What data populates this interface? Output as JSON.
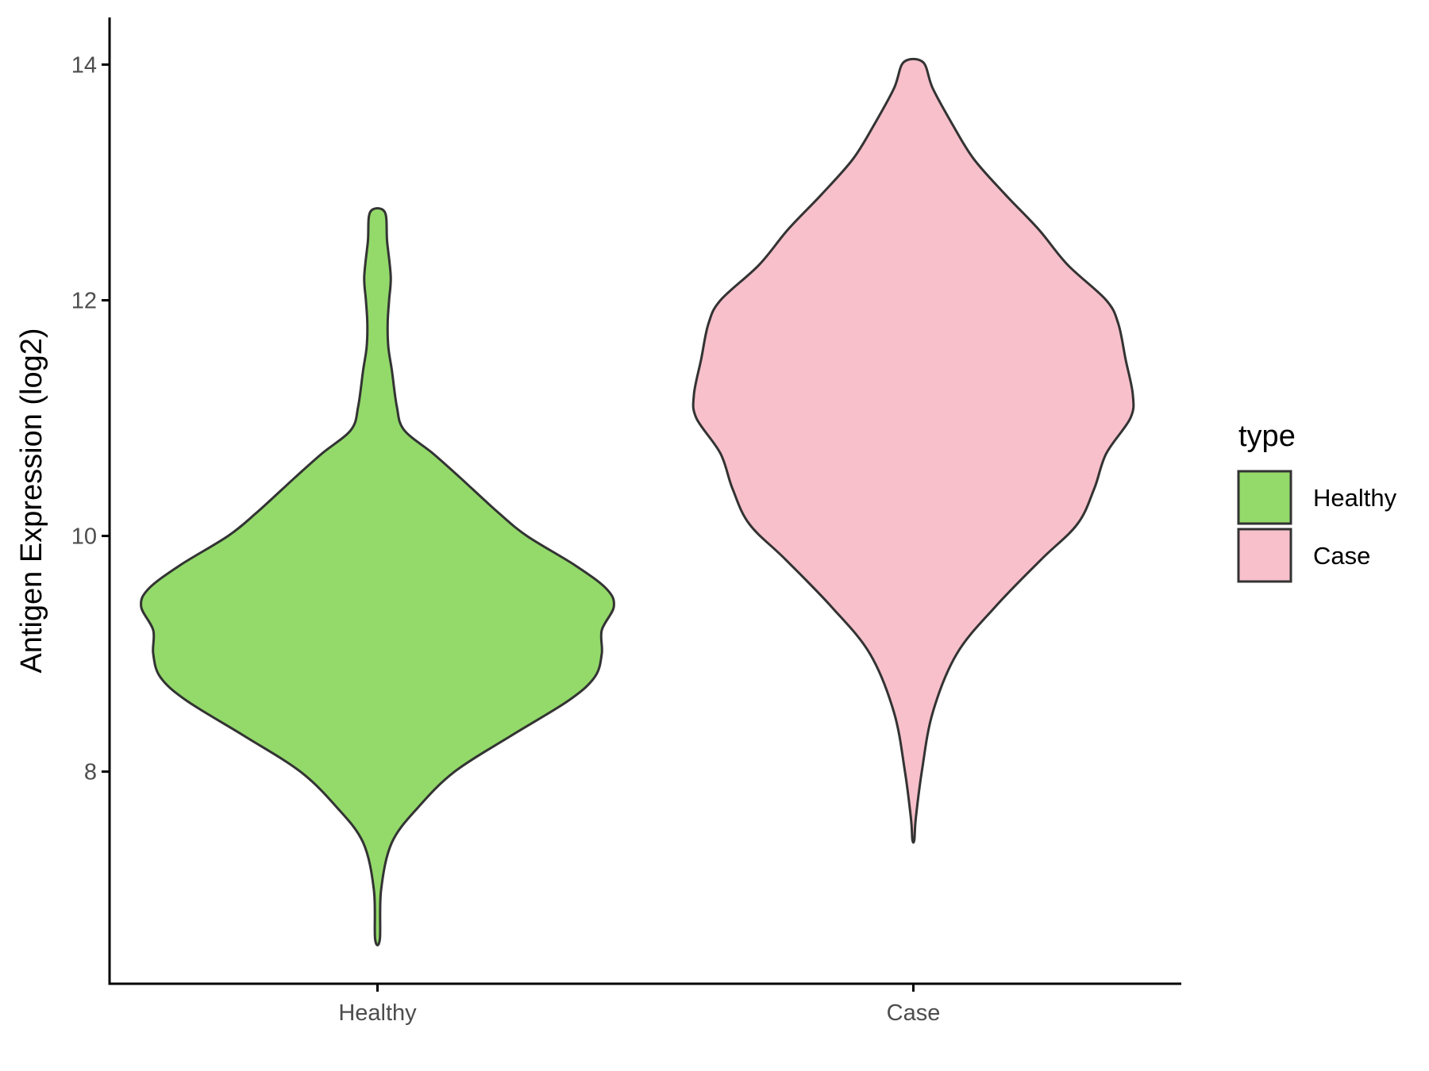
{
  "chart_data": {
    "type": "violin",
    "title": "",
    "xlabel": "",
    "ylabel": "Antigen Expression (log2)",
    "ylim": [
      6.2,
      14.4
    ],
    "yticks": [
      8,
      10,
      12,
      14
    ],
    "categories": [
      "Healthy",
      "Case"
    ],
    "grid": false,
    "legend": {
      "title": "type",
      "position": "right",
      "entries": [
        {
          "label": "Healthy",
          "color": "#93DA6A"
        },
        {
          "label": "Case",
          "color": "#F7C0CB"
        }
      ]
    },
    "series": [
      {
        "name": "Healthy",
        "color": "#93DA6A",
        "min": 6.58,
        "max": 12.75,
        "density": [
          [
            6.58,
            0.01
          ],
          [
            7.0,
            0.015
          ],
          [
            7.4,
            0.06
          ],
          [
            7.7,
            0.17
          ],
          [
            8.0,
            0.32
          ],
          [
            8.3,
            0.55
          ],
          [
            8.6,
            0.79
          ],
          [
            8.8,
            0.9
          ],
          [
            9.0,
            0.93
          ],
          [
            9.2,
            0.93
          ],
          [
            9.4,
            0.98
          ],
          [
            9.55,
            0.95
          ],
          [
            9.75,
            0.82
          ],
          [
            10.0,
            0.62
          ],
          [
            10.2,
            0.5
          ],
          [
            10.5,
            0.34
          ],
          [
            10.7,
            0.23
          ],
          [
            10.9,
            0.11
          ],
          [
            11.1,
            0.08
          ],
          [
            11.4,
            0.06
          ],
          [
            11.6,
            0.045
          ],
          [
            11.8,
            0.042
          ],
          [
            12.0,
            0.048
          ],
          [
            12.2,
            0.055
          ],
          [
            12.5,
            0.04
          ],
          [
            12.75,
            0.03
          ]
        ]
      },
      {
        "name": "Case",
        "color": "#F7C0CB",
        "min": 7.42,
        "max": 14.02,
        "density": [
          [
            7.42,
            0.004
          ],
          [
            7.6,
            0.01
          ],
          [
            8.0,
            0.035
          ],
          [
            8.5,
            0.08
          ],
          [
            9.0,
            0.18
          ],
          [
            9.4,
            0.34
          ],
          [
            9.8,
            0.53
          ],
          [
            10.1,
            0.68
          ],
          [
            10.4,
            0.75
          ],
          [
            10.7,
            0.8
          ],
          [
            11.0,
            0.9
          ],
          [
            11.2,
            0.91
          ],
          [
            11.5,
            0.88
          ],
          [
            11.8,
            0.85
          ],
          [
            12.0,
            0.8
          ],
          [
            12.3,
            0.64
          ],
          [
            12.6,
            0.52
          ],
          [
            12.9,
            0.38
          ],
          [
            13.2,
            0.25
          ],
          [
            13.5,
            0.16
          ],
          [
            13.8,
            0.08
          ],
          [
            14.02,
            0.04
          ]
        ]
      }
    ]
  }
}
